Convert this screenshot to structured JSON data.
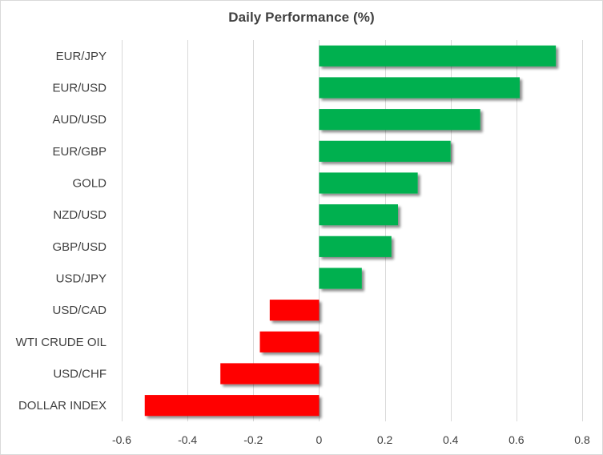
{
  "chart_data": {
    "type": "bar",
    "orientation": "horizontal",
    "title": "Daily Performance (%)",
    "xlabel": "",
    "ylabel": "",
    "xlim": [
      -0.6,
      0.8
    ],
    "x_ticks": [
      "-0.6",
      "-0.4",
      "-0.2",
      "0",
      "0.2",
      "0.4",
      "0.6",
      "0.8"
    ],
    "x_tick_values": [
      -0.6,
      -0.4,
      -0.2,
      0,
      0.2,
      0.4,
      0.6,
      0.8
    ],
    "grid": "vertical",
    "categories": [
      "EUR/JPY",
      "EUR/USD",
      "AUD/USD",
      "EUR/GBP",
      "GOLD",
      "NZD/USD",
      "GBP/USD",
      "USD/JPY",
      "USD/CAD",
      "WTI CRUDE OIL",
      "USD/CHF",
      "DOLLAR INDEX"
    ],
    "values": [
      0.72,
      0.61,
      0.49,
      0.4,
      0.3,
      0.24,
      0.22,
      0.13,
      -0.15,
      -0.18,
      -0.3,
      -0.53
    ],
    "colors": {
      "positive": "#00b050",
      "negative": "#ff0000",
      "grid": "#d9d9d9",
      "text": "#404040"
    }
  }
}
